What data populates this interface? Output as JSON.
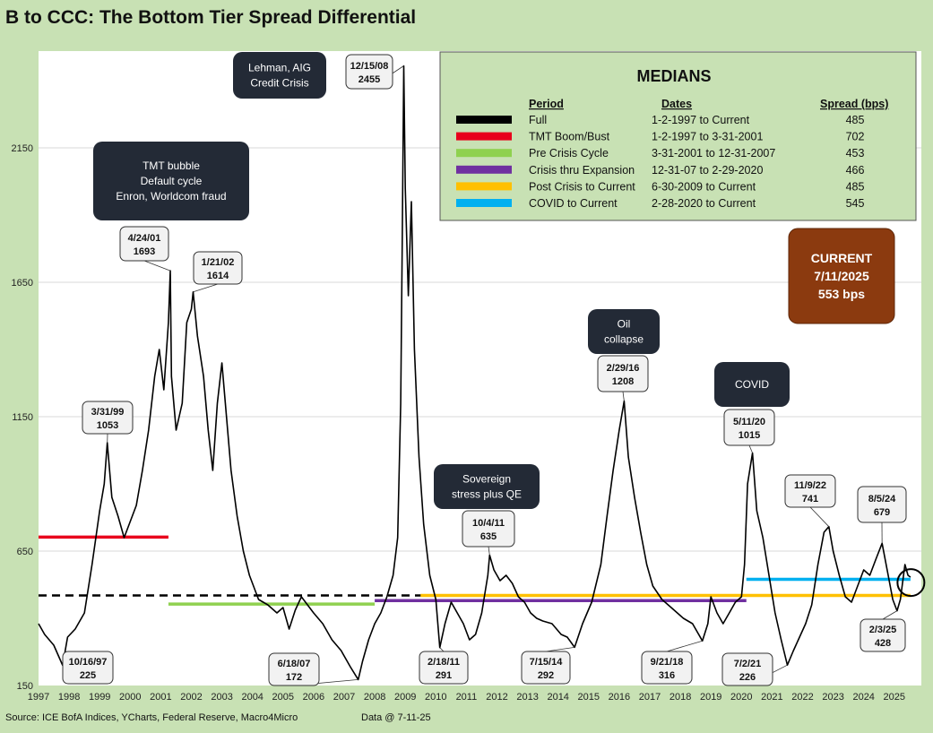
{
  "chart_data": {
    "type": "line",
    "title": "B to CCC: The Bottom Tier Spread Differential",
    "ylim": [
      150,
      2500
    ],
    "y_ticks": [
      150,
      650,
      1150,
      1650,
      2150
    ],
    "x_range": [
      1997.0,
      2025.6
    ],
    "x_ticks": [
      "1997",
      "1998",
      "1999",
      "2000",
      "2001",
      "2002",
      "2003",
      "2004",
      "2005",
      "2006",
      "2007",
      "2008",
      "2009",
      "2010",
      "2011",
      "2012",
      "2013",
      "2014",
      "2015",
      "2016",
      "2017",
      "2018",
      "2019",
      "2020",
      "2021",
      "2022",
      "2023",
      "2024",
      "2025"
    ],
    "grid": "horizontal",
    "series": [
      {
        "color": "#000000",
        "points": [
          [
            1997.0,
            380
          ],
          [
            1997.2,
            340
          ],
          [
            1997.5,
            300
          ],
          [
            1997.79,
            225
          ],
          [
            1997.95,
            330
          ],
          [
            1998.2,
            360
          ],
          [
            1998.5,
            420
          ],
          [
            1998.75,
            600
          ],
          [
            1999.0,
            800
          ],
          [
            1999.15,
            900
          ],
          [
            1999.25,
            1053
          ],
          [
            1999.4,
            850
          ],
          [
            1999.6,
            780
          ],
          [
            1999.8,
            700
          ],
          [
            2000.0,
            760
          ],
          [
            2000.2,
            820
          ],
          [
            2000.4,
            950
          ],
          [
            2000.6,
            1100
          ],
          [
            2000.8,
            1300
          ],
          [
            2000.95,
            1400
          ],
          [
            2001.1,
            1250
          ],
          [
            2001.25,
            1500
          ],
          [
            2001.31,
            1693
          ],
          [
            2001.35,
            1300
          ],
          [
            2001.5,
            1100
          ],
          [
            2001.7,
            1200
          ],
          [
            2001.85,
            1500
          ],
          [
            2002.0,
            1550
          ],
          [
            2002.06,
            1614
          ],
          [
            2002.2,
            1450
          ],
          [
            2002.4,
            1300
          ],
          [
            2002.55,
            1100
          ],
          [
            2002.7,
            950
          ],
          [
            2002.85,
            1200
          ],
          [
            2003.0,
            1350
          ],
          [
            2003.15,
            1150
          ],
          [
            2003.3,
            950
          ],
          [
            2003.5,
            780
          ],
          [
            2003.7,
            650
          ],
          [
            2003.9,
            560
          ],
          [
            2004.2,
            470
          ],
          [
            2004.5,
            450
          ],
          [
            2004.8,
            420
          ],
          [
            2005.0,
            440
          ],
          [
            2005.2,
            360
          ],
          [
            2005.4,
            430
          ],
          [
            2005.6,
            480
          ],
          [
            2005.8,
            450
          ],
          [
            2006.0,
            420
          ],
          [
            2006.3,
            380
          ],
          [
            2006.6,
            320
          ],
          [
            2006.9,
            280
          ],
          [
            2007.2,
            220
          ],
          [
            2007.46,
            172
          ],
          [
            2007.6,
            240
          ],
          [
            2007.8,
            320
          ],
          [
            2008.0,
            380
          ],
          [
            2008.2,
            420
          ],
          [
            2008.4,
            480
          ],
          [
            2008.6,
            560
          ],
          [
            2008.75,
            700
          ],
          [
            2008.85,
            1200
          ],
          [
            2008.9,
            1800
          ],
          [
            2008.95,
            2455
          ],
          [
            2009.0,
            2000
          ],
          [
            2009.1,
            1600
          ],
          [
            2009.2,
            1950
          ],
          [
            2009.3,
            1400
          ],
          [
            2009.45,
            1000
          ],
          [
            2009.6,
            750
          ],
          [
            2009.8,
            560
          ],
          [
            2010.0,
            470
          ],
          [
            2010.13,
            291
          ],
          [
            2010.3,
            380
          ],
          [
            2010.5,
            460
          ],
          [
            2010.7,
            420
          ],
          [
            2010.9,
            380
          ],
          [
            2011.1,
            320
          ],
          [
            2011.3,
            340
          ],
          [
            2011.5,
            420
          ],
          [
            2011.7,
            560
          ],
          [
            2011.76,
            635
          ],
          [
            2011.9,
            580
          ],
          [
            2012.1,
            540
          ],
          [
            2012.3,
            560
          ],
          [
            2012.5,
            530
          ],
          [
            2012.7,
            480
          ],
          [
            2012.9,
            460
          ],
          [
            2013.1,
            420
          ],
          [
            2013.3,
            400
          ],
          [
            2013.5,
            390
          ],
          [
            2013.8,
            380
          ],
          [
            2014.1,
            340
          ],
          [
            2014.3,
            330
          ],
          [
            2014.54,
            292
          ],
          [
            2014.8,
            380
          ],
          [
            2015.1,
            460
          ],
          [
            2015.4,
            600
          ],
          [
            2015.6,
            780
          ],
          [
            2015.8,
            950
          ],
          [
            2016.0,
            1100
          ],
          [
            2016.16,
            1208
          ],
          [
            2016.3,
            1000
          ],
          [
            2016.5,
            850
          ],
          [
            2016.7,
            720
          ],
          [
            2016.9,
            600
          ],
          [
            2017.1,
            520
          ],
          [
            2017.4,
            470
          ],
          [
            2017.7,
            440
          ],
          [
            2017.9,
            420
          ],
          [
            2018.1,
            400
          ],
          [
            2018.4,
            380
          ],
          [
            2018.72,
            316
          ],
          [
            2018.9,
            380
          ],
          [
            2019.0,
            480
          ],
          [
            2019.2,
            420
          ],
          [
            2019.4,
            380
          ],
          [
            2019.6,
            420
          ],
          [
            2019.8,
            460
          ],
          [
            2020.0,
            480
          ],
          [
            2020.1,
            600
          ],
          [
            2020.2,
            900
          ],
          [
            2020.36,
            1015
          ],
          [
            2020.5,
            800
          ],
          [
            2020.7,
            700
          ],
          [
            2020.9,
            560
          ],
          [
            2021.1,
            420
          ],
          [
            2021.3,
            320
          ],
          [
            2021.5,
            226
          ],
          [
            2021.7,
            280
          ],
          [
            2021.9,
            330
          ],
          [
            2022.1,
            380
          ],
          [
            2022.3,
            450
          ],
          [
            2022.5,
            600
          ],
          [
            2022.7,
            720
          ],
          [
            2022.86,
            741
          ],
          [
            2023.0,
            650
          ],
          [
            2023.2,
            560
          ],
          [
            2023.4,
            480
          ],
          [
            2023.6,
            460
          ],
          [
            2023.8,
            520
          ],
          [
            2024.0,
            580
          ],
          [
            2024.2,
            560
          ],
          [
            2024.4,
            620
          ],
          [
            2024.6,
            679
          ],
          [
            2024.8,
            560
          ],
          [
            2024.95,
            470
          ],
          [
            2025.09,
            428
          ],
          [
            2025.2,
            470
          ],
          [
            2025.35,
            600
          ],
          [
            2025.45,
            560
          ],
          [
            2025.53,
            553
          ]
        ]
      }
    ],
    "medians": [
      {
        "period": "Full",
        "dates": "1-2-1997  to Current",
        "spread": "485",
        "color": "#000000",
        "dash": true,
        "x0": 1997.0,
        "x1": 2025.53,
        "y": 485
      },
      {
        "period": "TMT Boom/Bust",
        "dates": "1-2-1997  to 3-31-2001",
        "spread": "702",
        "color": "#e8001c",
        "dash": false,
        "x0": 1997.0,
        "x1": 2001.25,
        "y": 702
      },
      {
        "period": "Pre Crisis Cycle",
        "dates": "3-31-2001  to 12-31-2007",
        "spread": "453",
        "color": "#8fd14f",
        "dash": false,
        "x0": 2001.25,
        "x1": 2008.0,
        "y": 453
      },
      {
        "period": "Crisis thru Expansion",
        "dates": "12-31-07  to 2-29-2020",
        "spread": "466",
        "color": "#7030a0",
        "dash": false,
        "x0": 2008.0,
        "x1": 2020.16,
        "y": 466
      },
      {
        "period": "Post Crisis to Current",
        "dates": "6-30-2009  to Current",
        "spread": "485",
        "color": "#ffc000",
        "dash": false,
        "x0": 2009.5,
        "x1": 2025.53,
        "y": 485
      },
      {
        "period": "COVID to Current",
        "dates": " 2-28-2020  to Current",
        "spread": "545",
        "color": "#00b0f0",
        "dash": false,
        "x0": 2020.16,
        "x1": 2025.53,
        "y": 545
      }
    ],
    "point_labels": [
      {
        "date": "10/16/97",
        "value": "225",
        "x": 1997.79,
        "y": 225
      },
      {
        "date": "3/31/99",
        "value": "1053",
        "x": 1999.25,
        "y": 1053
      },
      {
        "date": "4/24/01",
        "value": "1693",
        "x": 2001.31,
        "y": 1693
      },
      {
        "date": "1/21/02",
        "value": "1614",
        "x": 2002.06,
        "y": 1614
      },
      {
        "date": "6/18/07",
        "value": "172",
        "x": 2007.46,
        "y": 172
      },
      {
        "date": "12/15/08",
        "value": "2455",
        "x": 2008.95,
        "y": 2455
      },
      {
        "date": "2/18/11",
        "value": "291",
        "x": 2010.13,
        "y": 291
      },
      {
        "date": "10/4/11",
        "value": "635",
        "x": 2011.76,
        "y": 635
      },
      {
        "date": "7/15/14",
        "value": "292",
        "x": 2014.54,
        "y": 292
      },
      {
        "date": "2/29/16",
        "value": "1208",
        "x": 2016.16,
        "y": 1208
      },
      {
        "date": "9/21/18",
        "value": "316",
        "x": 2018.72,
        "y": 316
      },
      {
        "date": "5/11/20",
        "value": "1015",
        "x": 2020.36,
        "y": 1015
      },
      {
        "date": "7/2/21",
        "value": "226",
        "x": 2021.5,
        "y": 226
      },
      {
        "date": "11/9/22",
        "value": "741",
        "x": 2022.86,
        "y": 741
      },
      {
        "date": "8/5/24",
        "value": "679",
        "x": 2024.6,
        "y": 679
      },
      {
        "date": "2/3/25",
        "value": "428",
        "x": 2025.09,
        "y": 428
      }
    ],
    "annotations": [
      {
        "lines": [
          "TMT bubble",
          "Default cycle",
          "Enron, Worldcom fraud"
        ]
      },
      {
        "lines": [
          "Lehman, AIG",
          "Credit Crisis"
        ]
      },
      {
        "lines": [
          "Sovereign",
          "stress plus QE"
        ]
      },
      {
        "lines": [
          "Oil",
          "collapse"
        ]
      },
      {
        "lines": [
          "COVID"
        ]
      }
    ],
    "legend": {
      "title": "MEDIANS",
      "headers": {
        "period": "Period",
        "dates": "Dates",
        "spread": "Spread (bps)"
      },
      "placement": "top-right"
    },
    "current": {
      "lines": [
        "CURRENT",
        "7/11/2025",
        "553 bps"
      ],
      "x": 2025.53,
      "y": 553
    }
  },
  "footer": {
    "source": "Source: ICE BofA Indices, YCharts, Federal Reserve, Macro4Micro",
    "data_date": "Data @ 7-11-25"
  }
}
